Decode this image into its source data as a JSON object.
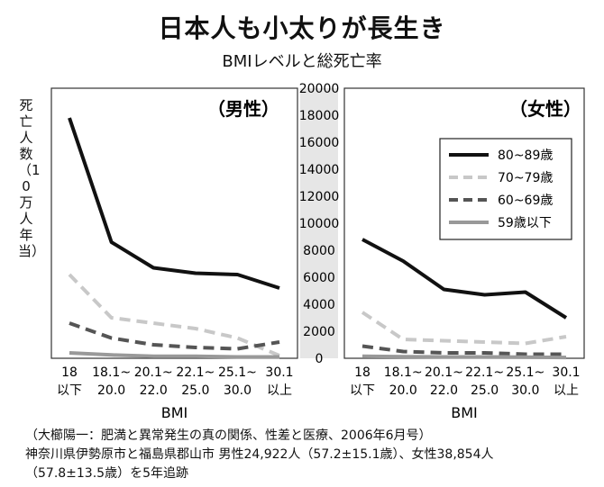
{
  "title": "日本人も小太りが長生き",
  "subtitle": "BMIレベルと総死亡率",
  "ylabel": "死亡人数（10万人年当）",
  "source": [
    "（大櫛陽一：肥満と異常発生の真の関係、性差と医療、2006年6月号）",
    "神奈川県伊勢原市と福島県郡山市 男性24,922人（57.2±15.1歳）、女性38,854人",
    "（57.8±13.5歳）を5年追跡"
  ],
  "colors": {
    "80~89": "#111111",
    "70~79": "#c8c8c8",
    "60~69": "#555555",
    "59below": "#999999",
    "axis_band": "#e6e6e6"
  },
  "chart_data": [
    {
      "type": "line",
      "title": "（男性）",
      "xlabel": "BMI",
      "categories": [
        "18\n以下",
        "18.1~\n20.0",
        "20.1~\n22.0",
        "22.1~\n25.0",
        "25.1~\n30.0",
        "30.1\n以上"
      ],
      "ylim": [
        0,
        20000
      ],
      "series": [
        {
          "name": "80~89歳",
          "values": [
            17800,
            8600,
            6700,
            6300,
            6200,
            5200
          ]
        },
        {
          "name": "70~79歳",
          "values": [
            6200,
            3000,
            2600,
            2200,
            1500,
            200
          ]
        },
        {
          "name": "60~69歳",
          "values": [
            2600,
            1500,
            1000,
            800,
            700,
            1200
          ]
        },
        {
          "name": "59歳以下",
          "values": [
            400,
            250,
            150,
            150,
            100,
            100
          ]
        }
      ]
    },
    {
      "type": "line",
      "title": "（女性）",
      "xlabel": "BMI",
      "categories": [
        "18\n以下",
        "18.1~\n20.0",
        "20.1~\n22.0",
        "22.1~\n25.0",
        "25.1~\n30.0",
        "30.1\n以上"
      ],
      "ylim": [
        0,
        20000
      ],
      "yticks": [
        0,
        2000,
        4000,
        6000,
        8000,
        10000,
        12000,
        14000,
        16000,
        18000,
        20000
      ],
      "legend_position": "top-right",
      "series": [
        {
          "name": "80~89歳",
          "values": [
            8800,
            7200,
            5100,
            4700,
            4900,
            3000
          ]
        },
        {
          "name": "70~79歳",
          "values": [
            3400,
            1400,
            1300,
            1200,
            1100,
            1600
          ]
        },
        {
          "name": "60~69歳",
          "values": [
            900,
            500,
            400,
            400,
            300,
            300
          ]
        },
        {
          "name": "59歳以下",
          "values": [
            150,
            120,
            100,
            100,
            80,
            60
          ]
        }
      ]
    }
  ]
}
